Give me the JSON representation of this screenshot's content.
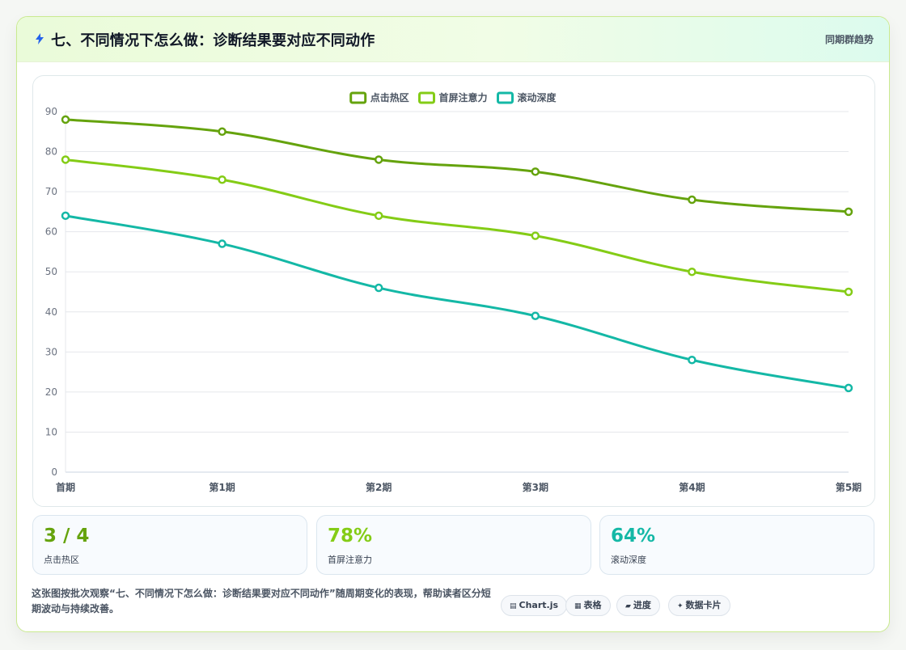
{
  "header": {
    "title": "七、不同情况下怎么做：诊断结果要对应不同动作",
    "tag": "同期群趋势"
  },
  "colors": {
    "series1": "#65a30d",
    "series2": "#84cc16",
    "series3": "#14b8a6"
  },
  "chart_data": {
    "type": "line",
    "categories": [
      "首期",
      "第1期",
      "第2期",
      "第3期",
      "第4期",
      "第5期"
    ],
    "series": [
      {
        "name": "点击热区",
        "values": [
          88,
          85,
          78,
          75,
          68,
          65
        ],
        "color": "#65a30d"
      },
      {
        "name": "首屏注意力",
        "values": [
          78,
          73,
          64,
          59,
          50,
          45
        ],
        "color": "#84cc16"
      },
      {
        "name": "滚动深度",
        "values": [
          64,
          57,
          46,
          39,
          28,
          21
        ],
        "color": "#14b8a6"
      }
    ],
    "ylim": [
      0,
      90
    ],
    "yticks": [
      0,
      10,
      20,
      30,
      40,
      50,
      60,
      70,
      80,
      90
    ],
    "grid": true,
    "legend": "top-center"
  },
  "stats": [
    {
      "value": "3 / 4",
      "label": "点击热区",
      "color": "#65a30d"
    },
    {
      "value": "78%",
      "label": "首屏注意力",
      "color": "#84cc16"
    },
    {
      "value": "64%",
      "label": "滚动深度",
      "color": "#14b8a6"
    }
  ],
  "footer": {
    "description": "这张图按批次观察“七、不同情况下怎么做：诊断结果要对应不同动作”随周期变化的表现，帮助读者区分短期波动与持续改善。",
    "chips": [
      {
        "icon": "▤",
        "label": "Chart.js",
        "icon_name": "chart-icon"
      },
      {
        "icon": "▦",
        "label": "表格",
        "icon_name": "table-icon"
      },
      {
        "icon": "▰",
        "label": "进度",
        "icon_name": "progress-icon"
      },
      {
        "icon": "✦",
        "label": "数据卡片",
        "icon_name": "sparkle-icon"
      }
    ]
  }
}
